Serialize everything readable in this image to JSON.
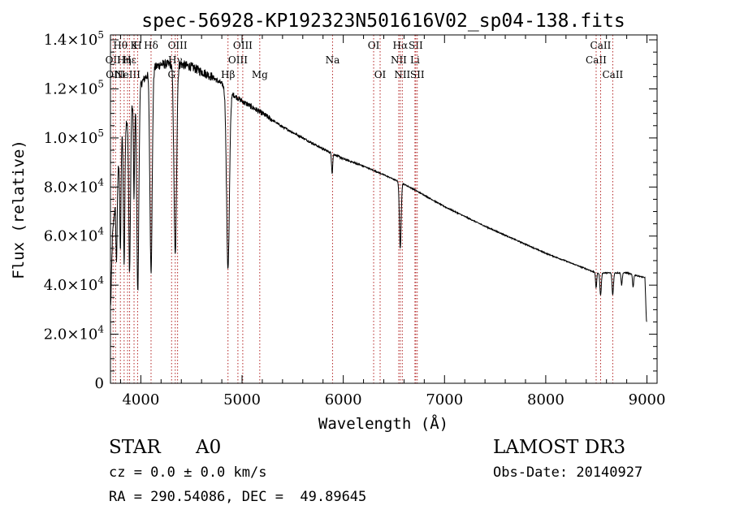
{
  "chart_data": {
    "type": "line",
    "title": "spec-56928-KP192323N501616V02_sp04-138.fits",
    "xlabel": "Wavelength (Å)",
    "ylabel": "Flux (relative)",
    "xlim": [
      3700,
      9100
    ],
    "ylim": [
      0,
      142000
    ],
    "x_ticks": [
      4000,
      5000,
      6000,
      7000,
      8000,
      9000
    ],
    "x_tick_labels": [
      "4000",
      "5000",
      "6000",
      "7000",
      "8000",
      "9000"
    ],
    "y_ticks": [
      0,
      20000,
      40000,
      60000,
      80000,
      100000,
      120000,
      140000
    ],
    "y_tick_labels": [
      {
        "mant": "0",
        "exp": ""
      },
      {
        "mant": "2.0×10",
        "exp": "4"
      },
      {
        "mant": "4.0×10",
        "exp": "4"
      },
      {
        "mant": "6.0×10",
        "exp": "4"
      },
      {
        "mant": "8.0×10",
        "exp": "4"
      },
      {
        "mant": "1.0×10",
        "exp": "5"
      },
      {
        "mant": "1.2×10",
        "exp": "5"
      },
      {
        "mant": "1.4×10",
        "exp": "5"
      }
    ],
    "line_color": "#000000",
    "marker_color": "#b22222",
    "continuum": {
      "x": [
        3700,
        3720,
        3800,
        3900,
        4000,
        4100,
        4200,
        4300,
        4400,
        4500,
        4600,
        4700,
        4800,
        4900,
        5000,
        5200,
        5400,
        5600,
        5800,
        6000,
        6200,
        6400,
        6560,
        6700,
        7000,
        7400,
        8000,
        8500,
        8800,
        8980,
        8995
      ],
      "y": [
        28000,
        60000,
        100000,
        112000,
        122000,
        128000,
        130000,
        130000,
        130000,
        129000,
        127000,
        125000,
        122000,
        118000,
        115000,
        110000,
        104500,
        100000,
        95500,
        91500,
        88500,
        85000,
        82000,
        79000,
        72000,
        64000,
        53000,
        45000,
        45000,
        43000,
        25000
      ]
    },
    "absorption_features": [
      {
        "x": 3760,
        "depth": 30000,
        "width": 9
      },
      {
        "x": 3798,
        "depth": 45000,
        "width": 9
      },
      {
        "x": 3835,
        "depth": 55000,
        "width": 10
      },
      {
        "x": 3889,
        "depth": 65000,
        "width": 12
      },
      {
        "x": 3933,
        "depth": 40000,
        "width": 8
      },
      {
        "x": 3970,
        "depth": 82000,
        "width": 14
      },
      {
        "x": 4101,
        "depth": 82000,
        "width": 16
      },
      {
        "x": 4340,
        "depth": 78000,
        "width": 18
      },
      {
        "x": 4861,
        "depth": 73000,
        "width": 20
      },
      {
        "x": 5890,
        "depth": 8000,
        "width": 8
      },
      {
        "x": 6563,
        "depth": 27000,
        "width": 12
      },
      {
        "x": 8498,
        "depth": 6000,
        "width": 8
      },
      {
        "x": 8542,
        "depth": 9000,
        "width": 10
      },
      {
        "x": 8662,
        "depth": 9000,
        "width": 10
      },
      {
        "x": 8750,
        "depth": 5000,
        "width": 8
      },
      {
        "x": 8863,
        "depth": 5000,
        "width": 8
      }
    ],
    "line_markers": [
      {
        "x": 3726,
        "label": "OII",
        "row": 1
      },
      {
        "x": 3750,
        "label": "OIII",
        "row": 2
      },
      {
        "x": 3798,
        "label": "Hθ",
        "row": 0
      },
      {
        "x": 3835,
        "label": "Hη",
        "row": 1
      },
      {
        "x": 3869,
        "label": "NeIII",
        "row": 2
      },
      {
        "x": 3889,
        "label": "Hε",
        "row": 1
      },
      {
        "x": 3933,
        "label": "K",
        "row": 0
      },
      {
        "x": 3968,
        "label": "H",
        "row": 0
      },
      {
        "x": 4101,
        "label": "Hδ",
        "row": 0
      },
      {
        "x": 4304,
        "label": "G",
        "row": 2
      },
      {
        "x": 4340,
        "label": "Hγ",
        "row": 1
      },
      {
        "x": 4363,
        "label": "OIII",
        "row": 0
      },
      {
        "x": 4861,
        "label": "Hβ",
        "row": 2
      },
      {
        "x": 4959,
        "label": "OIII",
        "row": 1
      },
      {
        "x": 5007,
        "label": "OIII",
        "row": 0
      },
      {
        "x": 5175,
        "label": "Mg",
        "row": 2
      },
      {
        "x": 5894,
        "label": "Na",
        "row": 1
      },
      {
        "x": 6300,
        "label": "OI",
        "row": 0
      },
      {
        "x": 6364,
        "label": "OI",
        "row": 2
      },
      {
        "x": 6548,
        "label": "NII",
        "row": 1
      },
      {
        "x": 6563,
        "label": "Hα",
        "row": 0
      },
      {
        "x": 6583,
        "label": "NII",
        "row": 2
      },
      {
        "x": 6708,
        "label": "Li",
        "row": 1
      },
      {
        "x": 6716,
        "label": "SII",
        "row": 0
      },
      {
        "x": 6731,
        "label": "SII",
        "row": 2
      },
      {
        "x": 8498,
        "label": "CaII",
        "row": 1
      },
      {
        "x": 8542,
        "label": "CaII",
        "row": 0
      },
      {
        "x": 8662,
        "label": "CaII",
        "row": 2
      }
    ]
  },
  "info": {
    "object_class": "STAR",
    "subclass": "A0",
    "survey": "LAMOST DR3",
    "redshift": "cz = 0.0 ± 0.0 km/s",
    "obs_date": "Obs-Date: 20140927",
    "coords": "RA = 290.54086, DEC =  49.89645"
  }
}
